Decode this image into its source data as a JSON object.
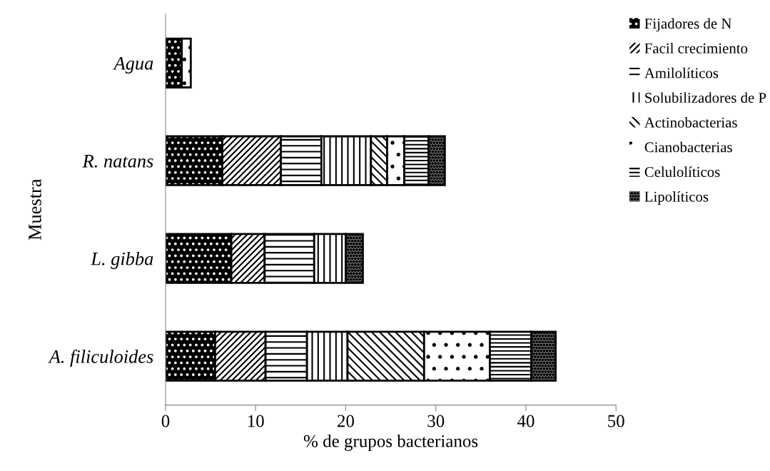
{
  "chart_data": {
    "type": "bar",
    "orientation": "horizontal",
    "stacked": true,
    "xlabel": "% de grupos bacterianos",
    "ylabel": "Muestra",
    "categories": [
      "Agua",
      "R. natans",
      "L. gibba",
      "A. filiculoides"
    ],
    "series": [
      {
        "name": "Fijadores de N",
        "color": "#000000",
        "values": [
          1.8,
          6.3,
          7.3,
          5.5
        ]
      },
      {
        "name": "Facil crecimiento",
        "color": "#ffffff",
        "values": [
          0,
          6.5,
          3.7,
          5.6
        ]
      },
      {
        "name": "Amilolíticos",
        "color": "#ffffff",
        "values": [
          0,
          4.5,
          5.5,
          4.6
        ]
      },
      {
        "name": "Solubilizadores de P",
        "color": "#ffffff",
        "values": [
          0,
          5.5,
          3.5,
          4.5
        ]
      },
      {
        "name": "Actinobacterias",
        "color": "#ffffff",
        "values": [
          0,
          1.8,
          0,
          8.5
        ]
      },
      {
        "name": "Cianobacterias",
        "color": "#ffffff",
        "values": [
          1.0,
          1.9,
          0,
          7.3
        ]
      },
      {
        "name": "Celulolíticos",
        "color": "#ffffff",
        "values": [
          0,
          2.7,
          0,
          4.6
        ]
      },
      {
        "name": "Lipolíticos",
        "color": "#808080",
        "values": [
          0,
          1.8,
          1.9,
          2.7
        ]
      }
    ],
    "xlim": [
      0,
      50
    ],
    "xticks": [
      0,
      10,
      20,
      30,
      40,
      50
    ],
    "grid": false,
    "legend": "right"
  }
}
